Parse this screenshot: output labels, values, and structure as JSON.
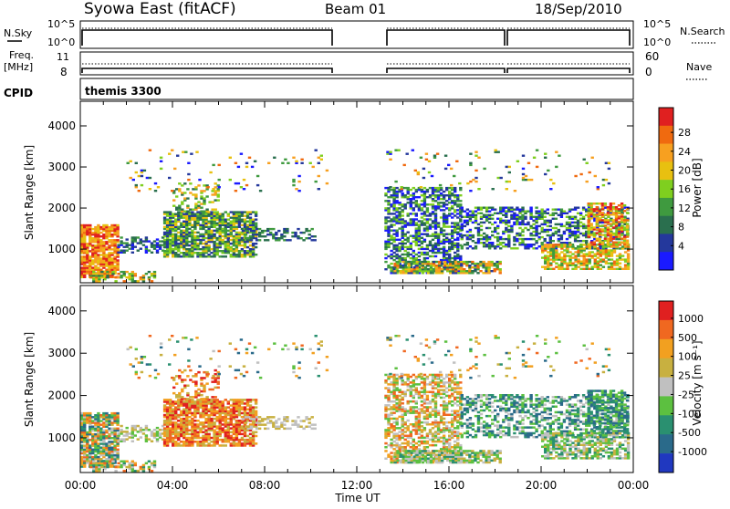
{
  "header": {
    "radar": "Syowa East (fitACF)",
    "beam": "Beam 01",
    "date": "18/Sep/2010"
  },
  "sky_panel": {
    "left_label": "N.Sky",
    "left_ticks": [
      "10^5",
      "10^0"
    ],
    "right_label": "N.Search",
    "right_ticks": [
      "10^5",
      "10^0"
    ]
  },
  "freq_panel": {
    "left_label_line1": "Freq.",
    "left_label_line2": "[MHz]",
    "left_ticks": [
      "11",
      "8"
    ],
    "right_label": "Nave",
    "right_ticks": [
      "60",
      "0"
    ]
  },
  "cpid": {
    "label": "CPID",
    "value": "themis 3300"
  },
  "chart_data": [
    {
      "type": "heatmap",
      "name": "power",
      "ylabel": "Slant Range [km]",
      "xlabel": "",
      "ylim": [
        180,
        4600
      ],
      "yticks": [
        "1000",
        "2000",
        "3000",
        "4000"
      ],
      "x_tick_values": [
        0,
        4,
        8,
        12,
        16,
        20,
        24
      ],
      "colorbar_label": "Power [dB]",
      "colorbar_ticks": [
        "4",
        "8",
        "12",
        "16",
        "20",
        "24",
        "28"
      ],
      "colors": [
        "#1a1aff",
        "#24389c",
        "#2a6f4e",
        "#3f9a3f",
        "#7fcf1f",
        "#e8c010",
        "#f7a020",
        "#f06a0f",
        "#e02020"
      ],
      "data_gaps_hours": [
        [
          10.75,
          13.2
        ]
      ]
    },
    {
      "type": "heatmap",
      "name": "velocity",
      "ylabel": "Slant Range [km]",
      "xlabel": "Time UT",
      "ylim": [
        180,
        4600
      ],
      "yticks": [
        "1000",
        "2000",
        "3000",
        "4000"
      ],
      "x_tick_labels": [
        "00:00",
        "04:00",
        "08:00",
        "12:00",
        "16:00",
        "20:00",
        "00:00"
      ],
      "colorbar_label": "Velocity [m s⁻¹]",
      "colorbar_ticks": [
        "1000",
        "500",
        "100",
        "25",
        "-25",
        "-100",
        "-500",
        "-1000"
      ],
      "colors": [
        "#2038c0",
        "#2a6a8a",
        "#2a9070",
        "#5cc040",
        "#c0c0c0",
        "#c8b040",
        "#f2a020",
        "#f06820",
        "#e02020"
      ],
      "data_gaps_hours": [
        [
          10.75,
          13.2
        ]
      ]
    }
  ]
}
